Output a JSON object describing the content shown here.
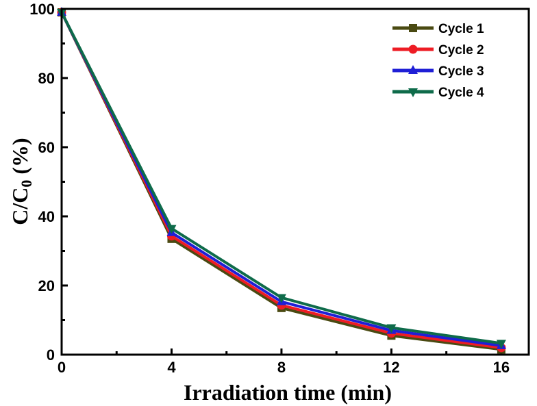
{
  "chart_data": {
    "type": "line",
    "title": "",
    "xlabel": "Irradiation time (min)",
    "ylabel_main": "C/C",
    "ylabel_sub": "0",
    "ylabel_tail": " (%)",
    "xlim": [
      0,
      17
    ],
    "ylim": [
      0,
      100
    ],
    "xticks": [
      0,
      4,
      8,
      12,
      16
    ],
    "xtick_labels": [
      "0",
      "4",
      "8",
      "12",
      "16"
    ],
    "xminor": [
      2,
      6,
      10,
      14
    ],
    "yticks": [
      0,
      20,
      40,
      60,
      80,
      100
    ],
    "ytick_labels": [
      "0",
      "20",
      "40",
      "60",
      "80",
      "100"
    ],
    "yminor": [
      10,
      30,
      50,
      70,
      90
    ],
    "grid": false,
    "legend_position": "top-right",
    "x": [
      0,
      4,
      8,
      12,
      16
    ],
    "series": [
      {
        "name": "Cycle 1",
        "values": [
          99,
          33.5,
          13.5,
          5.5,
          1.5
        ],
        "color": "#4a4a12",
        "marker": "square"
      },
      {
        "name": "Cycle 2",
        "values": [
          99,
          34.3,
          14.3,
          6.2,
          2.0
        ],
        "color": "#ee1c24",
        "marker": "circle"
      },
      {
        "name": "Cycle 3",
        "values": [
          99,
          35.3,
          15.3,
          7.0,
          2.6
        ],
        "color": "#1f1fd6",
        "marker": "triangle-up"
      },
      {
        "name": "Cycle 4",
        "values": [
          99,
          36.5,
          16.5,
          7.8,
          3.3
        ],
        "color": "#0e6b4a",
        "marker": "triangle-down"
      }
    ]
  }
}
